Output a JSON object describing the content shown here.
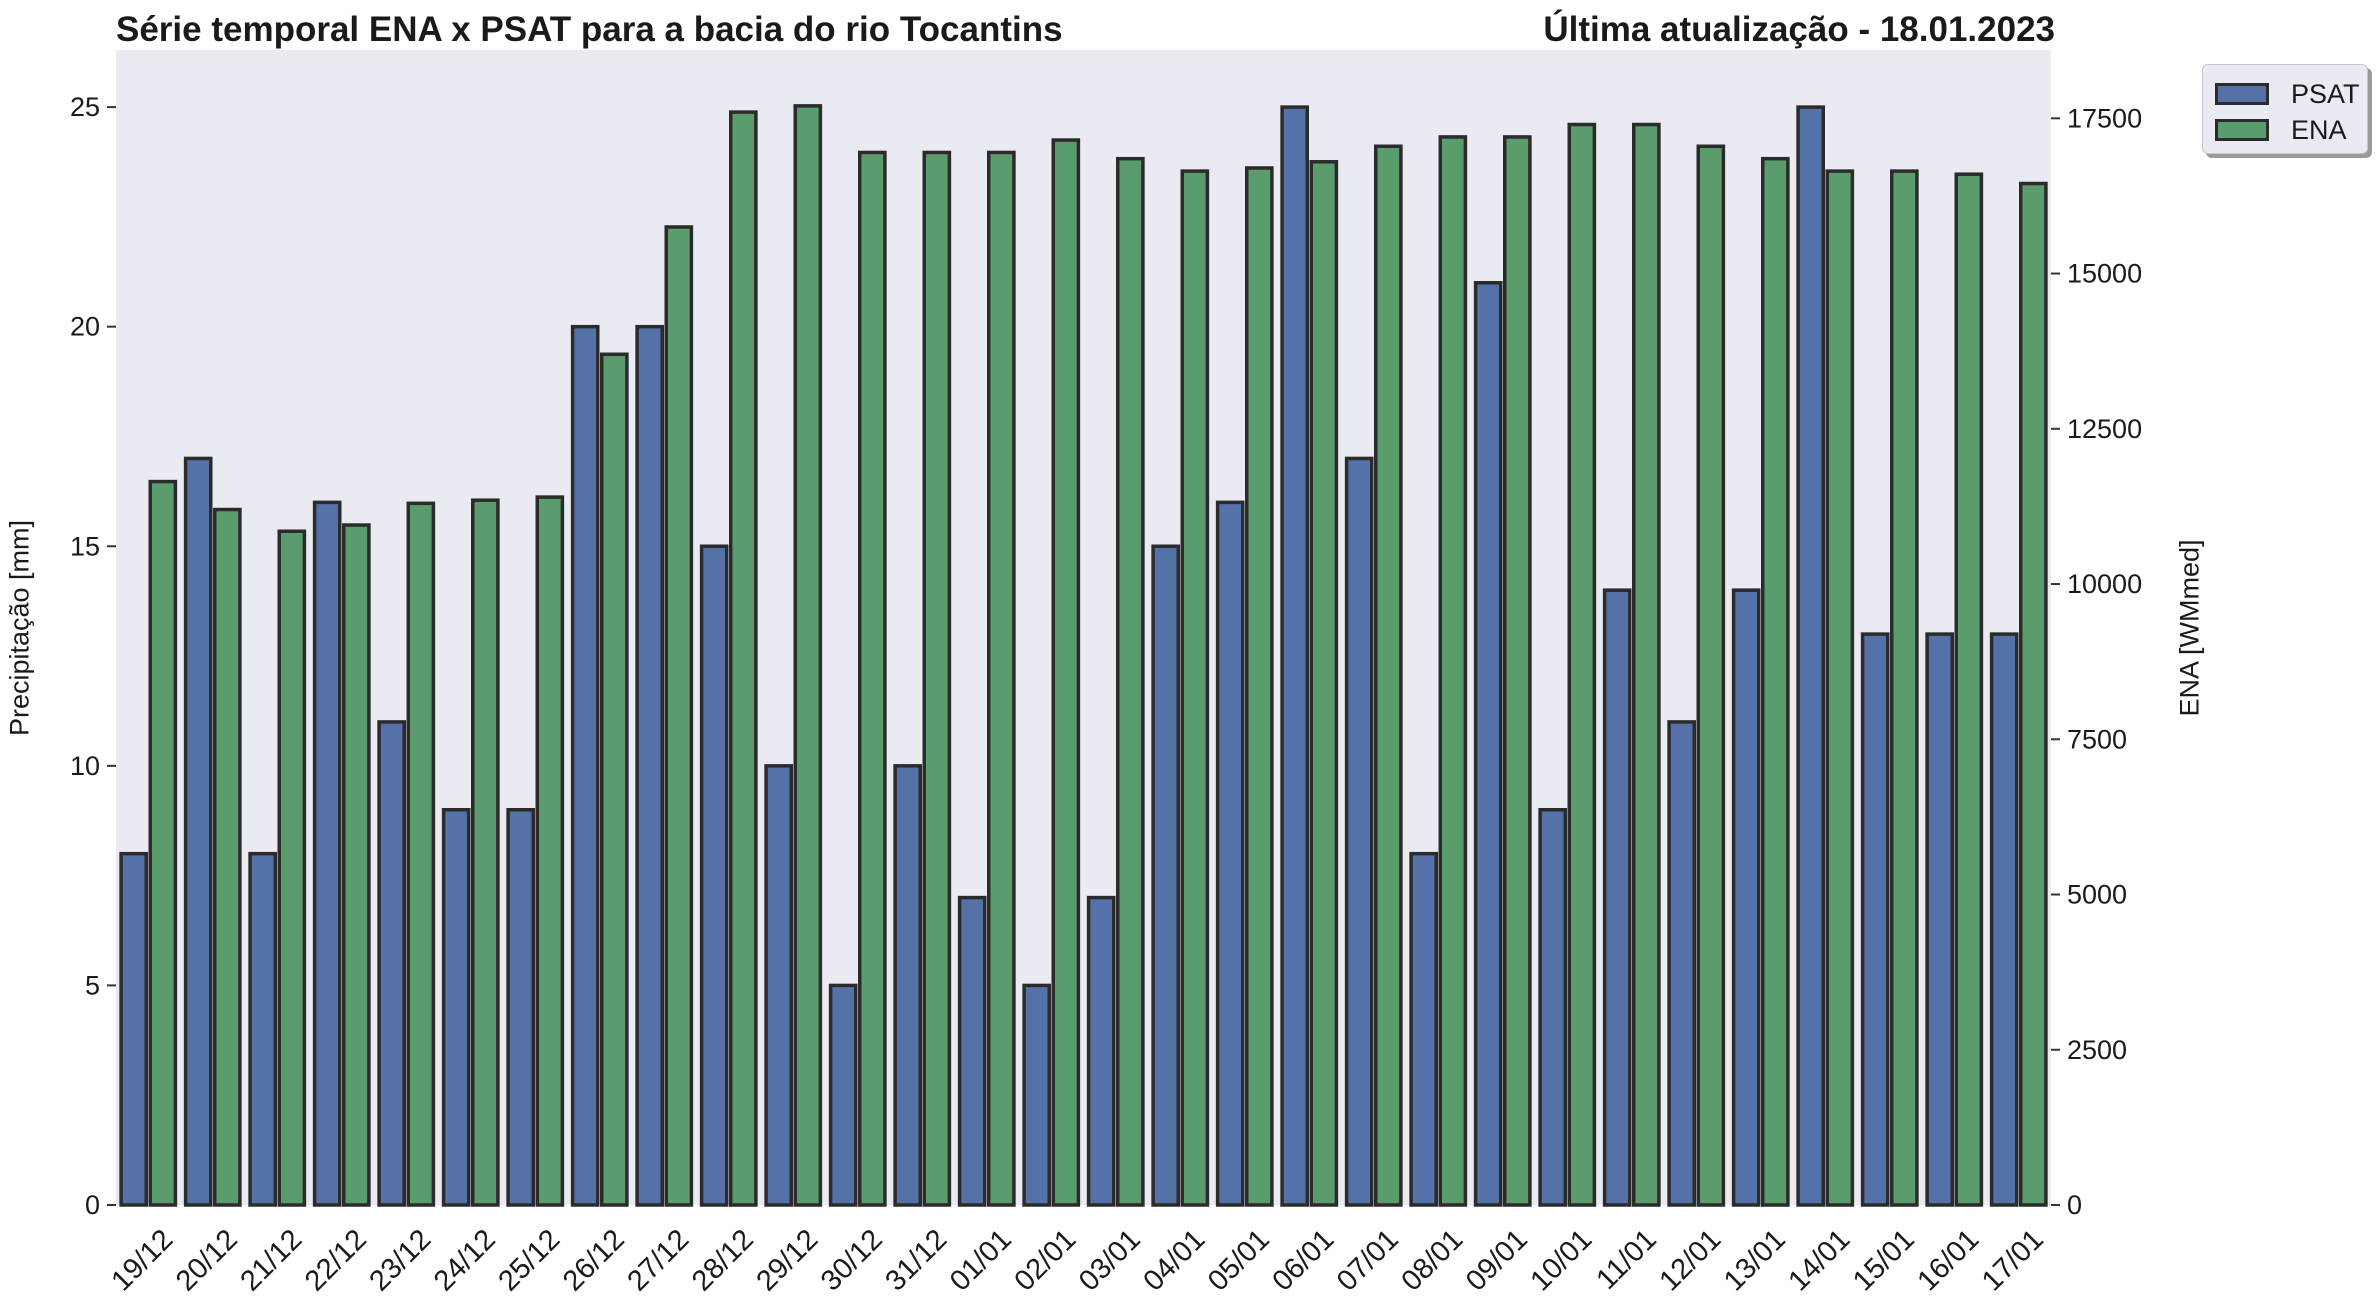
{
  "header": {
    "title": "Série temporal ENA x PSAT para a bacia do rio Tocantins",
    "update": "Última atualização - 18.01.2023"
  },
  "legend": {
    "psat_label": "PSAT",
    "ena_label": "ENA"
  },
  "colors": {
    "psat": "#5471a8",
    "ena": "#5a9c6b",
    "plot_bg": "#eaeaf2",
    "edge": "#2b2b2b"
  },
  "chart_data": {
    "type": "bar",
    "categories": [
      "19/12",
      "20/12",
      "21/12",
      "22/12",
      "23/12",
      "24/12",
      "25/12",
      "26/12",
      "27/12",
      "28/12",
      "29/12",
      "30/12",
      "31/12",
      "01/01",
      "02/01",
      "03/01",
      "04/01",
      "05/01",
      "06/01",
      "07/01",
      "08/01",
      "09/01",
      "10/01",
      "11/01",
      "12/01",
      "13/01",
      "14/01",
      "15/01",
      "16/01",
      "17/01"
    ],
    "series": [
      {
        "name": "PSAT",
        "axis": "left",
        "values": [
          8,
          17,
          8,
          16,
          11,
          9,
          9,
          20,
          20,
          15,
          10,
          5,
          10,
          7,
          5,
          7,
          15,
          16,
          25,
          17,
          8,
          21,
          9,
          14,
          11,
          14,
          25,
          13,
          13,
          13
        ]
      },
      {
        "name": "ENA",
        "axis": "right",
        "values": [
          11650,
          11200,
          10850,
          10950,
          11300,
          11350,
          11400,
          13700,
          15750,
          17600,
          17700,
          16950,
          16950,
          16950,
          17150,
          16850,
          16650,
          16700,
          16800,
          17050,
          17200,
          17200,
          17400,
          17400,
          17050,
          16850,
          16650,
          16650,
          16600,
          16450
        ]
      }
    ],
    "ylabel": "Precipitação [mm]",
    "y2label": "ENA [WMmed]",
    "ylim": [
      0,
      26.3
    ],
    "y2lim": [
      0,
      18600
    ],
    "yticks": [
      "0",
      "5",
      "10",
      "15",
      "20",
      "25"
    ],
    "y2ticks": [
      "0",
      "2500",
      "5000",
      "7500",
      "10000",
      "12500",
      "15000",
      "17500"
    ],
    "legend_position": "outside-top-right",
    "grid": false
  }
}
